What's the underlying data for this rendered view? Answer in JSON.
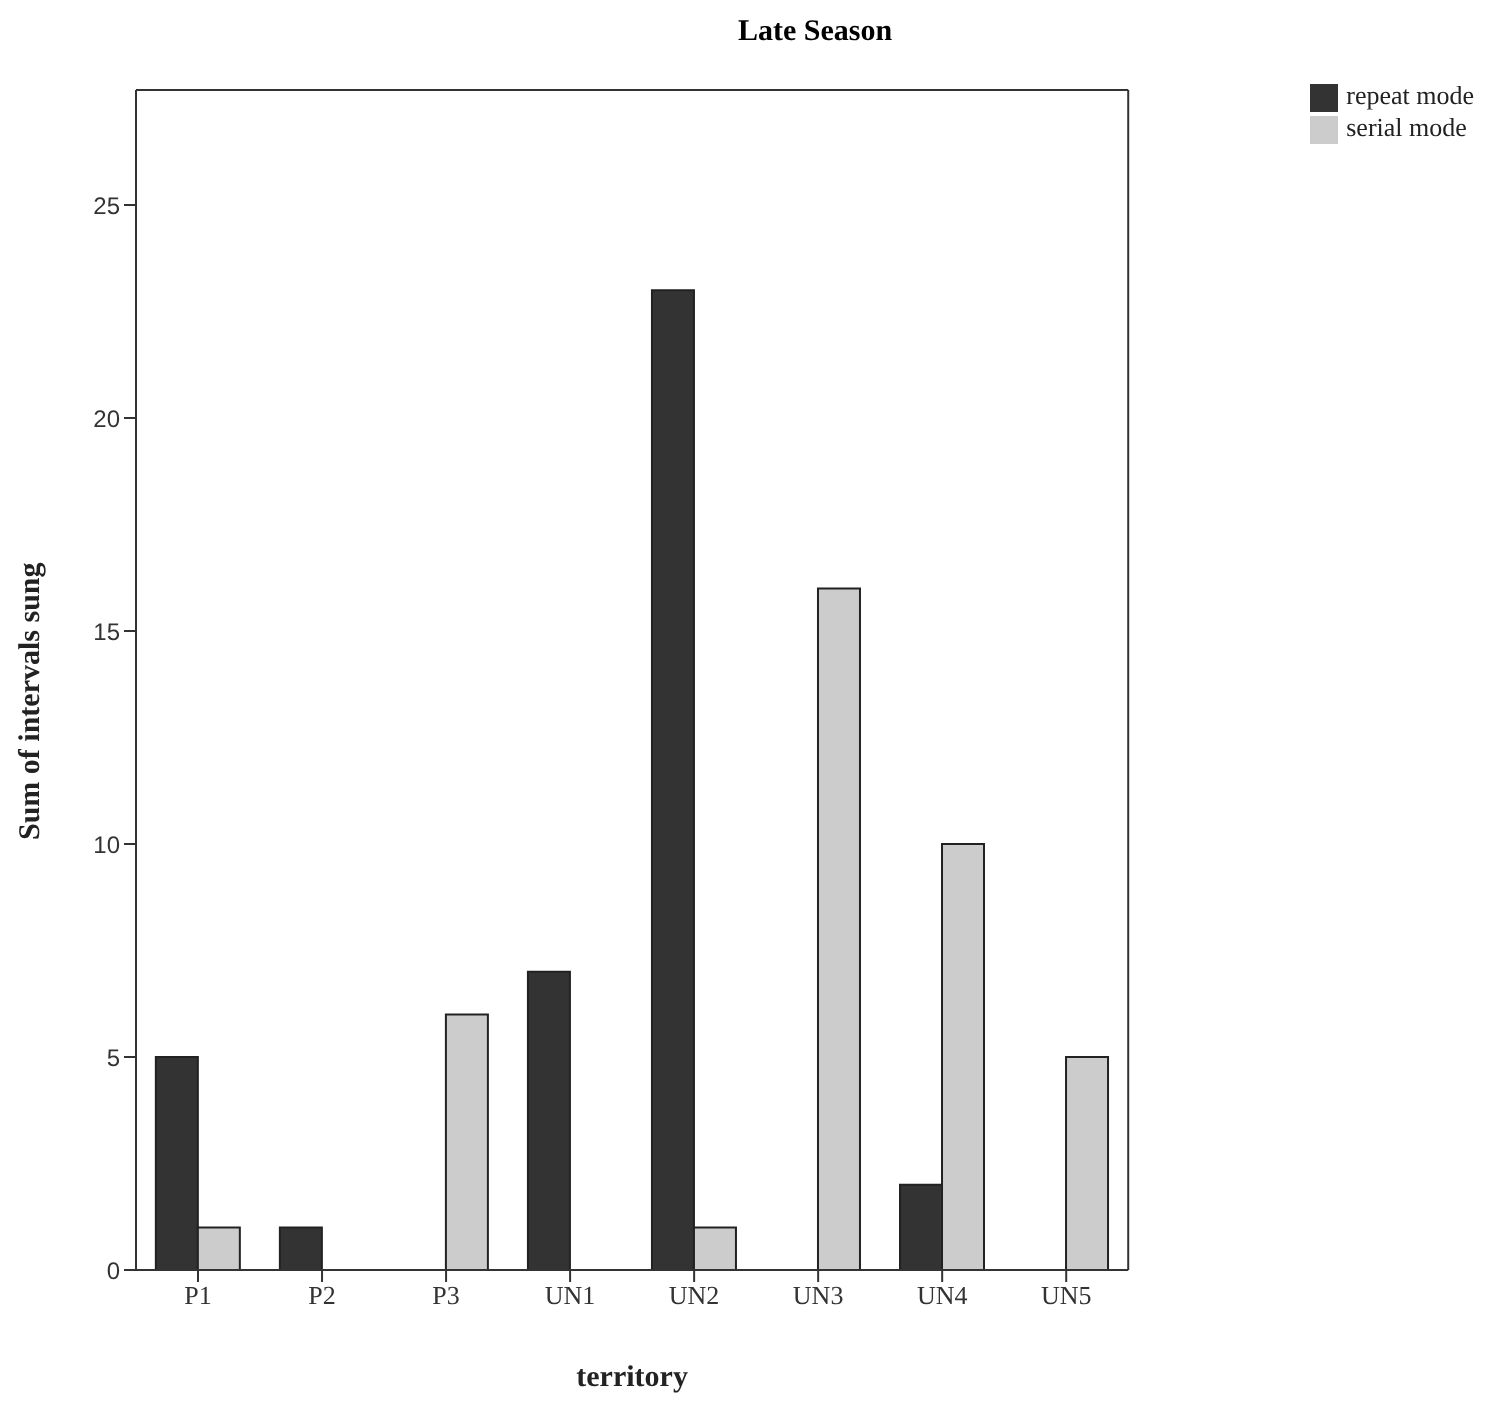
{
  "chart_data": {
    "type": "bar",
    "title": "Late Season",
    "xlabel": "territory",
    "ylabel": "Sum of intervals sung",
    "categories": [
      "P1",
      "P2",
      "P3",
      "UN1",
      "UN2",
      "UN3",
      "UN4",
      "UN5"
    ],
    "series": [
      {
        "name": "repeat mode",
        "color": "#333333",
        "values": [
          5,
          1,
          0,
          7,
          23,
          0,
          2,
          0
        ]
      },
      {
        "name": "serial mode",
        "color": "#cccccc",
        "values": [
          1,
          0,
          6,
          0,
          1,
          16,
          10,
          5
        ]
      }
    ],
    "ylim": [
      0,
      27.7
    ],
    "yticks": [
      0,
      5,
      10,
      15,
      20,
      25
    ],
    "grid": false,
    "legend": "top right"
  }
}
